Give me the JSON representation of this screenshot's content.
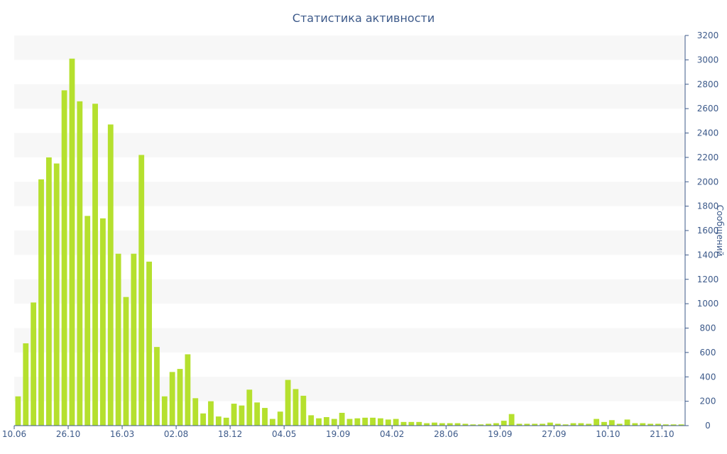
{
  "chart_data": {
    "type": "bar",
    "title": "Статистика активности",
    "ylabel": "Сообщений",
    "xlabel": "",
    "ylim": [
      0,
      3200
    ],
    "yticks": [
      0,
      200,
      400,
      600,
      800,
      1000,
      1200,
      1400,
      1600,
      1800,
      2000,
      2200,
      2400,
      2600,
      2800,
      3000,
      3200
    ],
    "xtick_labels": [
      "10.06",
      "26.10",
      "16.03",
      "02.08",
      "18.12",
      "04.05",
      "19.09",
      "04.02",
      "28.06",
      "19.09",
      "27.09",
      "10.10",
      "21.10"
    ],
    "xtick_positions": [
      0,
      7,
      14,
      21,
      28,
      35,
      42,
      49,
      56,
      63,
      70,
      77,
      84
    ],
    "grid": "alternating horizontal bands",
    "bar_color": "#b5e02e",
    "text_color": "#3d5a8a",
    "values": [
      240,
      675,
      1010,
      2020,
      2200,
      2150,
      2750,
      3010,
      2660,
      1720,
      2640,
      1700,
      2470,
      1410,
      1055,
      1410,
      2220,
      1345,
      645,
      240,
      440,
      465,
      585,
      225,
      100,
      200,
      75,
      65,
      180,
      165,
      295,
      190,
      145,
      55,
      115,
      375,
      300,
      245,
      85,
      60,
      70,
      55,
      105,
      55,
      60,
      65,
      65,
      60,
      50,
      55,
      30,
      30,
      30,
      20,
      25,
      20,
      20,
      20,
      15,
      10,
      10,
      15,
      20,
      40,
      95,
      15,
      15,
      15,
      15,
      25,
      15,
      10,
      20,
      20,
      15,
      55,
      30,
      45,
      15,
      50,
      20,
      20,
      15,
      15,
      10,
      10,
      10
    ]
  }
}
